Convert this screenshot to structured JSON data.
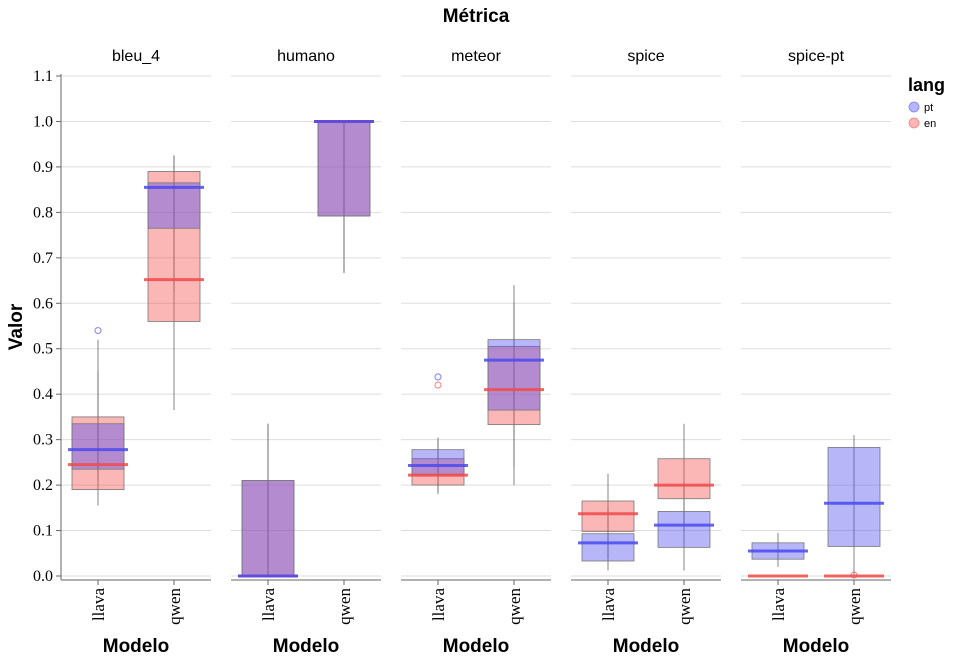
{
  "chart_data": {
    "type": "boxplot",
    "title": "Métrica",
    "xlabel": "Modelo",
    "ylabel": "Valor",
    "ylim": [
      0,
      1.1
    ],
    "yticks": [
      "0.0",
      "0.1",
      "0.2",
      "0.3",
      "0.4",
      "0.5",
      "0.6",
      "0.7",
      "0.8",
      "0.9",
      "1.0",
      "1.1"
    ],
    "categories": [
      "llava",
      "qwen"
    ],
    "legend": {
      "title": "lang",
      "position": "top-right",
      "entries": [
        {
          "label": "pt",
          "color": "#4a4af0"
        },
        {
          "label": "en",
          "color": "#f04a4a"
        }
      ]
    },
    "grid": true,
    "facets": [
      {
        "name": "bleu_4",
        "boxes": [
          {
            "model": "llava",
            "lang": "en",
            "q1": 0.19,
            "median": 0.245,
            "q3": 0.35,
            "whisker_low": 0.155,
            "whisker_high": 0.45,
            "outliers": []
          },
          {
            "model": "llava",
            "lang": "pt",
            "q1": 0.235,
            "median": 0.278,
            "q3": 0.335,
            "whisker_low": 0.21,
            "whisker_high": 0.52,
            "outliers": [
              0.54
            ]
          },
          {
            "model": "qwen",
            "lang": "en",
            "q1": 0.56,
            "median": 0.652,
            "q3": 0.89,
            "whisker_low": 0.365,
            "whisker_high": 0.925,
            "outliers": []
          },
          {
            "model": "qwen",
            "lang": "pt",
            "q1": 0.765,
            "median": 0.855,
            "q3": 0.865,
            "whisker_low": 0.625,
            "whisker_high": 0.925,
            "outliers": []
          }
        ]
      },
      {
        "name": "humano",
        "boxes": [
          {
            "model": "llava",
            "lang": "en",
            "q1": 0.0,
            "median": 0.0,
            "q3": 0.21,
            "whisker_low": 0.0,
            "whisker_high": 0.335,
            "outliers": []
          },
          {
            "model": "llava",
            "lang": "pt",
            "q1": 0.0,
            "median": 0.0,
            "q3": 0.21,
            "whisker_low": 0.0,
            "whisker_high": 0.335,
            "outliers": []
          },
          {
            "model": "qwen",
            "lang": "en",
            "q1": 0.792,
            "median": 1.0,
            "q3": 1.0,
            "whisker_low": 0.667,
            "whisker_high": 1.0,
            "outliers": []
          },
          {
            "model": "qwen",
            "lang": "pt",
            "q1": 0.792,
            "median": 1.0,
            "q3": 1.0,
            "whisker_low": 0.667,
            "whisker_high": 1.0,
            "outliers": []
          }
        ]
      },
      {
        "name": "meteor",
        "boxes": [
          {
            "model": "llava",
            "lang": "en",
            "q1": 0.2,
            "median": 0.222,
            "q3": 0.258,
            "whisker_low": 0.18,
            "whisker_high": 0.305,
            "outliers": [
              0.42
            ]
          },
          {
            "model": "llava",
            "lang": "pt",
            "q1": 0.222,
            "median": 0.243,
            "q3": 0.278,
            "whisker_low": 0.185,
            "whisker_high": 0.3,
            "outliers": [
              0.438
            ]
          },
          {
            "model": "qwen",
            "lang": "en",
            "q1": 0.333,
            "median": 0.41,
            "q3": 0.505,
            "whisker_low": 0.2,
            "whisker_high": 0.64,
            "outliers": []
          },
          {
            "model": "qwen",
            "lang": "pt",
            "q1": 0.365,
            "median": 0.475,
            "q3": 0.52,
            "whisker_low": 0.24,
            "whisker_high": 0.6,
            "outliers": []
          }
        ]
      },
      {
        "name": "spice",
        "boxes": [
          {
            "model": "llava",
            "lang": "en",
            "q1": 0.098,
            "median": 0.137,
            "q3": 0.165,
            "whisker_low": 0.04,
            "whisker_high": 0.225,
            "outliers": []
          },
          {
            "model": "llava",
            "lang": "pt",
            "q1": 0.033,
            "median": 0.073,
            "q3": 0.093,
            "whisker_low": 0.012,
            "whisker_high": 0.15,
            "outliers": []
          },
          {
            "model": "qwen",
            "lang": "en",
            "q1": 0.17,
            "median": 0.2,
            "q3": 0.258,
            "whisker_low": 0.1,
            "whisker_high": 0.335,
            "outliers": []
          },
          {
            "model": "qwen",
            "lang": "pt",
            "q1": 0.063,
            "median": 0.112,
            "q3": 0.142,
            "whisker_low": 0.012,
            "whisker_high": 0.2,
            "outliers": []
          }
        ]
      },
      {
        "name": "spice-pt",
        "boxes": [
          {
            "model": "llava",
            "lang": "en",
            "q1": 0.0,
            "median": 0.0,
            "q3": 0.0,
            "whisker_low": 0.0,
            "whisker_high": 0.0,
            "outliers": []
          },
          {
            "model": "llava",
            "lang": "pt",
            "q1": 0.037,
            "median": 0.055,
            "q3": 0.073,
            "whisker_low": 0.02,
            "whisker_high": 0.095,
            "outliers": []
          },
          {
            "model": "qwen",
            "lang": "en",
            "q1": 0.0,
            "median": 0.0,
            "q3": 0.0,
            "whisker_low": 0.0,
            "whisker_high": 0.0,
            "outliers": [
              0.002
            ]
          },
          {
            "model": "qwen",
            "lang": "pt",
            "q1": 0.065,
            "median": 0.16,
            "q3": 0.283,
            "whisker_low": 0.0,
            "whisker_high": 0.31,
            "outliers": []
          }
        ]
      }
    ]
  }
}
